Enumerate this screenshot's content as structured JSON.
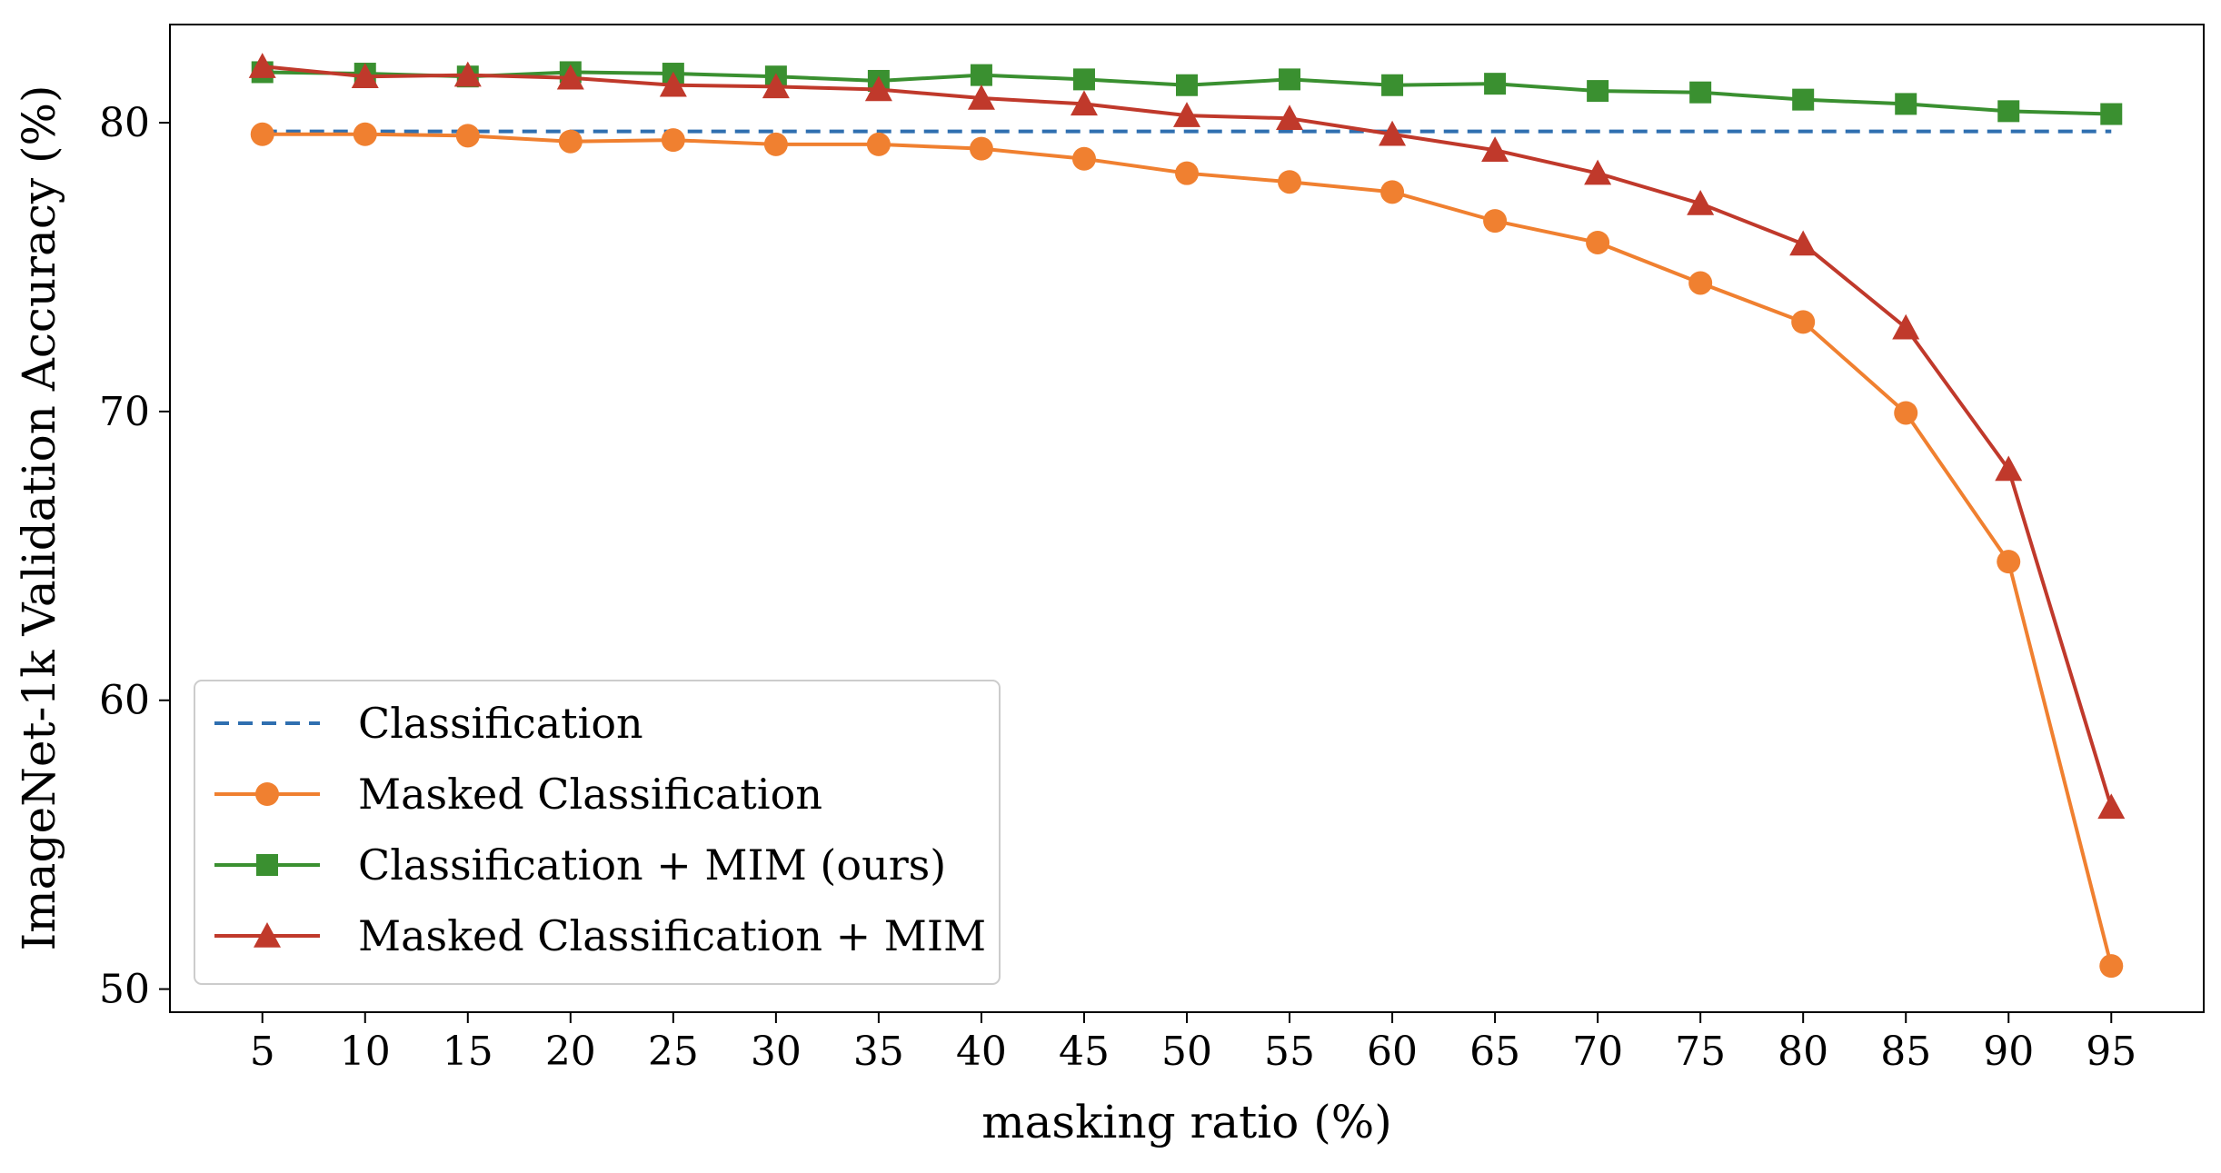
{
  "chart_data": {
    "type": "line",
    "title": "",
    "xlabel": "masking ratio (%)",
    "ylabel": "ImageNet-1k Validation Accuracy (%)",
    "x": [
      5,
      10,
      15,
      20,
      25,
      30,
      35,
      40,
      45,
      50,
      55,
      60,
      65,
      70,
      75,
      80,
      85,
      90,
      95
    ],
    "xlim": [
      0.5,
      99.5
    ],
    "ylim": [
      49.2,
      83.4
    ],
    "yticks": [
      50,
      60,
      70,
      80
    ],
    "grid": false,
    "legend_position": "lower-left",
    "series": [
      {
        "name": "Classification",
        "color": "#2f6fb0",
        "style": "dashed",
        "marker": "none",
        "values": [
          79.7,
          79.7,
          79.7,
          79.7,
          79.7,
          79.7,
          79.7,
          79.7,
          79.7,
          79.7,
          79.7,
          79.7,
          79.7,
          79.7,
          79.7,
          79.7,
          79.7,
          79.7,
          79.7
        ]
      },
      {
        "name": "Masked Classification",
        "color": "#f08030",
        "style": "solid",
        "marker": "circle",
        "values": [
          79.6,
          79.6,
          79.55,
          79.35,
          79.4,
          79.25,
          79.25,
          79.1,
          78.75,
          78.25,
          77.95,
          77.6,
          76.6,
          75.85,
          74.45,
          73.1,
          69.95,
          64.8,
          50.8
        ]
      },
      {
        "name": "Classification + MIM (ours)",
        "color": "#3a9030",
        "style": "solid",
        "marker": "square",
        "values": [
          81.75,
          81.7,
          81.6,
          81.75,
          81.7,
          81.6,
          81.45,
          81.65,
          81.5,
          81.3,
          81.5,
          81.3,
          81.35,
          81.1,
          81.05,
          80.8,
          80.65,
          80.4,
          80.3
        ]
      },
      {
        "name": "Masked Classification + MIM",
        "color": "#c0392b",
        "style": "solid",
        "marker": "triangle",
        "values": [
          81.95,
          81.6,
          81.65,
          81.55,
          81.3,
          81.25,
          81.15,
          80.85,
          80.65,
          80.25,
          80.15,
          79.6,
          79.05,
          78.25,
          77.2,
          75.8,
          72.9,
          68.0,
          56.3
        ]
      }
    ]
  }
}
